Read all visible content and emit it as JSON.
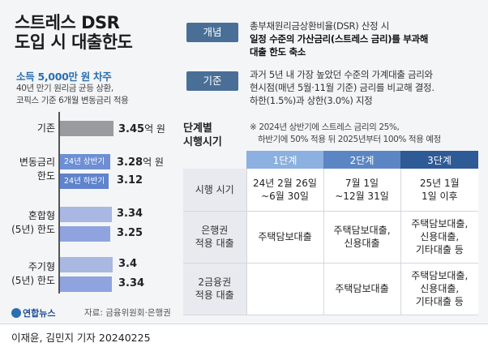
{
  "title_line1": "스트레스 DSR",
  "title_line2": "도입 시 대출한도",
  "subhead": "소득 5,000만 원 차주",
  "left_note_line1": "40년 만기 원리금 균등 상환,",
  "left_note_line2": "코픽스 기준 6개월 변동금리 적용",
  "bars": {
    "basic": {
      "label": "기존",
      "value": "3.45",
      "unit": "억 원"
    },
    "variable": {
      "label_line1": "변동금리",
      "label_line2": "한도",
      "first_tag": "24년 상반기",
      "first_value": "3.28",
      "first_unit": "억 원",
      "second_tag": "24년 하반기",
      "second_value": "3.12"
    },
    "mixed": {
      "label_line1": "혼합형",
      "label_line2": "(5년) 한도",
      "first_value": "3.34",
      "second_value": "3.25"
    },
    "periodic": {
      "label_line1": "주기형",
      "label_line2": "(5년) 한도",
      "first_value": "3.4",
      "second_value": "3.34"
    }
  },
  "definition": {
    "tag": "개념",
    "line1": "총부채원리금상환비율(DSR) 산정 시",
    "line2": "일정 수준의 가산금리(스트레스 금리)를 부과해",
    "line3": "대출 한도 축소"
  },
  "criteria": {
    "tag": "기준",
    "line1": "과거 5년 내 가장 높았던 수준의 가계대출 금리와",
    "line2": "현시점(매년 5월·11월 기준) 금리를 비교해 결정.",
    "line3": "하한(1.5%)과 상한(3.0%) 지정"
  },
  "phases_title_line1": "단계별",
  "phases_title_line2": "시행시기",
  "phases_note_line1": "※ 2024년 상반기에 스트레스 금리의 25%,",
  "phases_note_line2": "하반기에 50% 적용 뒤 2025년부터 100% 적용 예정",
  "table": {
    "headers": [
      "1단계",
      "2단계",
      "3단계"
    ],
    "rows": [
      {
        "label_line1": "시행 시기",
        "label_line2": "",
        "c1_line1": "24년 2월 26일",
        "c1_line2": "~6월 30일",
        "c1_line3": "",
        "c2_line1": "7월 1일",
        "c2_line2": "~12월 31일",
        "c2_line3": "",
        "c3_line1": "25년 1월",
        "c3_line2": "1일 이후",
        "c3_line3": ""
      },
      {
        "label_line1": "은행권",
        "label_line2": "적용 대출",
        "c1_line1": "주택담보대출",
        "c1_line2": "",
        "c1_line3": "",
        "c2_line1": "주택담보대출,",
        "c2_line2": "신용대출",
        "c2_line3": "",
        "c3_line1": "주택담보대출,",
        "c3_line2": "신용대출,",
        "c3_line3": "기타대출 등"
      },
      {
        "label_line1": "2금융권",
        "label_line2": "적용 대출",
        "c1_line1": "",
        "c1_line2": "",
        "c1_line3": "",
        "c2_line1": "주택담보대출",
        "c2_line2": "",
        "c2_line3": "",
        "c3_line1": "주택담보대출,",
        "c3_line2": "신용대출,",
        "c3_line3": "기타대출 등"
      }
    ]
  },
  "logo_text": "연합뉴스",
  "source": "자료: 금융위원회·은행권",
  "credit_authors": "이재윤, 김민지 기자",
  "credit_date": "20240225",
  "colors": {
    "accent_blue": "#2a6fb0",
    "tag_blue": "#4a6f96",
    "bar_gray": "#9a9b9e",
    "bar_blue": "#a9b7e3",
    "bar_tag": "#6e8fd4"
  }
}
